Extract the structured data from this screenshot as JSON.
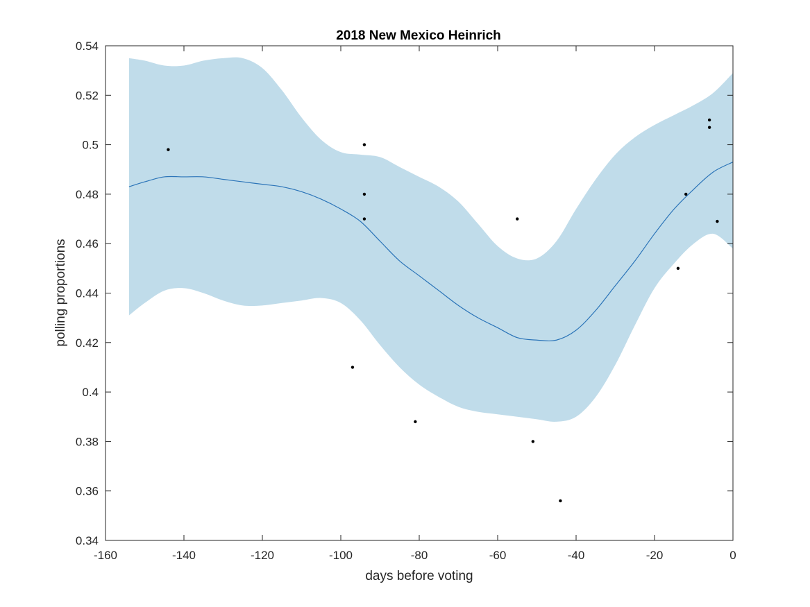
{
  "chart_data": {
    "type": "line",
    "title": "2018 New Mexico Heinrich",
    "xlabel": "days before voting",
    "ylabel": "polling proportions",
    "xlim": [
      -160,
      0
    ],
    "ylim": [
      0.34,
      0.54
    ],
    "xticks": [
      -160,
      -140,
      -120,
      -100,
      -80,
      -60,
      -40,
      -20,
      0
    ],
    "yticks": [
      0.34,
      0.36,
      0.38,
      0.4,
      0.42,
      0.44,
      0.46,
      0.48,
      0.5,
      0.52,
      0.54
    ],
    "xtick_labels": [
      "-160",
      "-140",
      "-120",
      "-100",
      "-80",
      "-60",
      "-40",
      "-20",
      "0"
    ],
    "ytick_labels": [
      "0.34",
      "0.36",
      "0.38",
      "0.4",
      "0.42",
      "0.44",
      "0.46",
      "0.48",
      "0.5",
      "0.52",
      "0.54"
    ],
    "grid": false,
    "colors": {
      "band": "#c0dcea",
      "line": "#2b74b8",
      "points": "#000000",
      "axis": "#262626"
    },
    "series": [
      {
        "kind": "band",
        "x": [
          -154,
          -150,
          -145,
          -140,
          -135,
          -130,
          -125,
          -120,
          -115,
          -110,
          -105,
          -100,
          -95,
          -90,
          -85,
          -80,
          -75,
          -70,
          -65,
          -60,
          -55,
          -50,
          -45,
          -40,
          -35,
          -30,
          -25,
          -20,
          -15,
          -10,
          -5,
          0
        ],
        "upper": [
          0.535,
          0.534,
          0.532,
          0.532,
          0.534,
          0.535,
          0.535,
          0.531,
          0.522,
          0.511,
          0.502,
          0.497,
          0.496,
          0.495,
          0.491,
          0.487,
          0.483,
          0.477,
          0.468,
          0.459,
          0.454,
          0.454,
          0.461,
          0.474,
          0.486,
          0.496,
          0.503,
          0.508,
          0.512,
          0.516,
          0.521,
          0.529
        ],
        "lower": [
          0.431,
          0.436,
          0.441,
          0.442,
          0.44,
          0.437,
          0.435,
          0.435,
          0.436,
          0.437,
          0.438,
          0.436,
          0.429,
          0.419,
          0.41,
          0.403,
          0.398,
          0.394,
          0.392,
          0.391,
          0.39,
          0.389,
          0.388,
          0.39,
          0.398,
          0.411,
          0.427,
          0.442,
          0.452,
          0.46,
          0.464,
          0.458
        ]
      },
      {
        "kind": "line",
        "x": [
          -154,
          -150,
          -145,
          -140,
          -135,
          -130,
          -125,
          -120,
          -115,
          -110,
          -105,
          -100,
          -95,
          -90,
          -85,
          -80,
          -75,
          -70,
          -65,
          -60,
          -55,
          -50,
          -45,
          -40,
          -35,
          -30,
          -25,
          -20,
          -15,
          -10,
          -5,
          0
        ],
        "y": [
          0.483,
          0.485,
          0.487,
          0.487,
          0.487,
          0.486,
          0.485,
          0.484,
          0.483,
          0.481,
          0.478,
          0.474,
          0.469,
          0.461,
          0.453,
          0.447,
          0.441,
          0.435,
          0.43,
          0.426,
          0.422,
          0.421,
          0.421,
          0.425,
          0.433,
          0.443,
          0.453,
          0.464,
          0.474,
          0.482,
          0.489,
          0.493
        ]
      },
      {
        "kind": "scatter",
        "x": [
          -144,
          -97,
          -94,
          -94,
          -94,
          -81,
          -55,
          -51,
          -44,
          -14,
          -12,
          -6,
          -6,
          -4
        ],
        "y": [
          0.498,
          0.41,
          0.5,
          0.48,
          0.47,
          0.388,
          0.47,
          0.38,
          0.356,
          0.45,
          0.48,
          0.507,
          0.51,
          0.469
        ]
      }
    ]
  }
}
